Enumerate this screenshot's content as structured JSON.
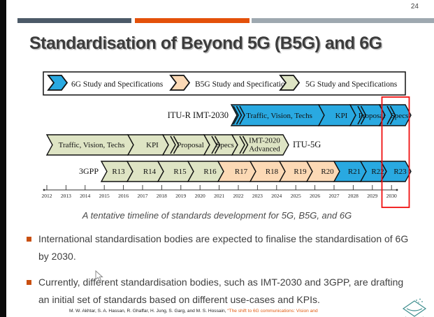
{
  "page": {
    "number": "24"
  },
  "title": "Standardisation of Beyond 5G (B5G) and 6G",
  "colors": {
    "bar_dark": "#4c5a68",
    "bar_orange": "#e4510a",
    "bar_gray": "#9ea8b0",
    "bullet_marker": "#c94f10",
    "citation_link": "#e05a10",
    "highlight": "#f01010",
    "outline": "#111111"
  },
  "categories": {
    "6g": {
      "label": "6G Study and Specifications",
      "color": "#29a9e1"
    },
    "b5g": {
      "label": "B5G Study and Specifications",
      "color": "#fcd9b5"
    },
    "5g": {
      "label": "5G Study and Specifications",
      "color": "#dee4c4"
    }
  },
  "legend": {
    "order": [
      "6g",
      "b5g",
      "5g"
    ]
  },
  "timeline": {
    "rows": [
      {
        "id": "itu-r-imt-2030",
        "label": "ITU-R IMT-2030",
        "segments": [
          {
            "label": "Traffic, Vision, Techs",
            "category": "6g"
          },
          {
            "label": "KPI",
            "category": "6g"
          },
          {
            "label": "Proposal",
            "category": "6g"
          },
          {
            "label": "Specs",
            "category": "6g"
          }
        ]
      },
      {
        "id": "itu-5g",
        "label": "ITU-5G",
        "segments": [
          {
            "label": "Traffic, Vision, Techs",
            "category": "5g"
          },
          {
            "label": "KPI",
            "category": "5g"
          },
          {
            "label": "Proposal",
            "category": "5g"
          },
          {
            "label": "Specs",
            "category": "5g"
          },
          {
            "label": "IMT-2020\nAdvanced",
            "category": "5g"
          }
        ]
      },
      {
        "id": "3gpp",
        "label": "3GPP",
        "segments": [
          {
            "label": "R13",
            "category": "5g"
          },
          {
            "label": "R14",
            "category": "5g"
          },
          {
            "label": "R15",
            "category": "5g"
          },
          {
            "label": "R16",
            "category": "5g"
          },
          {
            "label": "R17",
            "category": "b5g"
          },
          {
            "label": "R18",
            "category": "b5g"
          },
          {
            "label": "R19",
            "category": "b5g"
          },
          {
            "label": "R20",
            "category": "b5g"
          },
          {
            "label": "R21",
            "category": "6g"
          },
          {
            "label": "R22",
            "category": "6g"
          },
          {
            "label": "R23",
            "category": "6g"
          }
        ]
      }
    ],
    "years": [
      "2012",
      "2013",
      "2014",
      "2015",
      "2016",
      "2017",
      "2018",
      "2019",
      "2020",
      "2021",
      "2022",
      "2023",
      "2024",
      "2025",
      "2026",
      "2027",
      "2028",
      "2029",
      "2030"
    ],
    "highlighted_year": "2030"
  },
  "caption": "A tentative timeline of standards development for 5G, B5G, and 6G",
  "bullets": [
    "International standardisation bodies are expected to finalise the standardisation of 6G by 2030.",
    "Currently, different standardisation bodies, such as IMT-2030 and 3GPP, are drafting an initial set of standards based on different use-cases and KPIs."
  ],
  "footer": {
    "citation_plain": "M. W. Akhtar, S. A. Hassan, R. Ghaffar, H. Jung, S. Garg, and M. S. Hossain, ",
    "citation_link": "“The shift to 6G communications: Vision and"
  }
}
